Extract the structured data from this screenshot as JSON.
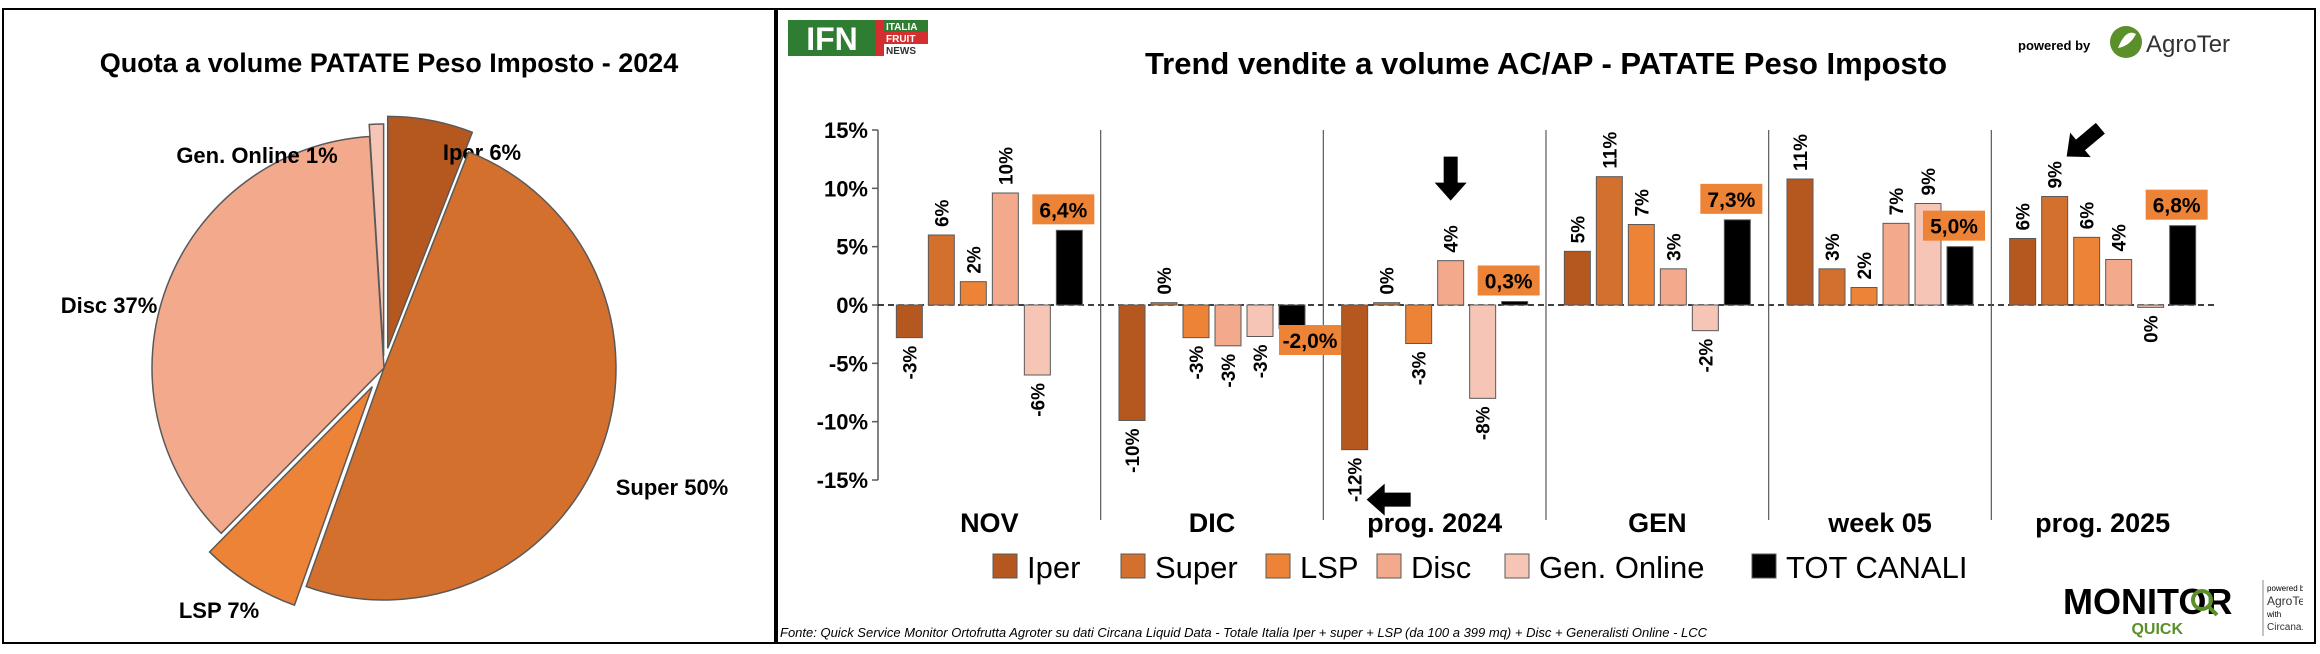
{
  "pie": {
    "chart_data": {
      "type": "pie",
      "title": "Quota a volume PATATE Peso Imposto - 2024",
      "slices": [
        {
          "name": "Iper",
          "value": 6,
          "label": "Iper 6%",
          "color": "#b5581f"
        },
        {
          "name": "Super",
          "value": 50,
          "label": "Super 50%",
          "color": "#d4702d"
        },
        {
          "name": "LSP",
          "value": 7,
          "label": "LSP 7%",
          "color": "#ed8336"
        },
        {
          "name": "Disc",
          "value": 37,
          "label": "Disc 37%",
          "color": "#f2a98c"
        },
        {
          "name": "Gen. Online",
          "value": 1,
          "label": "Gen. Online 1%",
          "color": "#f6c5b5"
        }
      ]
    }
  },
  "bar": {
    "chart_data": {
      "type": "bar",
      "title": "Trend vendite a volume AC/AP - PATATE Peso Imposto",
      "categories": [
        "NOV",
        "DIC",
        "prog. 2024",
        "GEN",
        "week 05",
        "prog. 2025"
      ],
      "ylim": [
        -15,
        15
      ],
      "yticks": [
        "-15%",
        "-10%",
        "-5%",
        "0%",
        "5%",
        "10%",
        "15%"
      ],
      "series": [
        {
          "name": "Iper",
          "color": "#b5581f",
          "values": [
            -2.8,
            -9.9,
            -12.4,
            4.6,
            10.8,
            5.7
          ],
          "labels": [
            "-3%",
            "-10%",
            "-12%",
            "5%",
            "11%",
            "6%"
          ]
        },
        {
          "name": "Super",
          "color": "#d4702d",
          "values": [
            6.0,
            0.2,
            0.2,
            11.0,
            3.1,
            9.3
          ],
          "labels": [
            "6%",
            "0%",
            "0%",
            "11%",
            "3%",
            "9%"
          ]
        },
        {
          "name": "LSP",
          "color": "#ed8336",
          "values": [
            2.0,
            -2.8,
            -3.3,
            6.9,
            1.5,
            5.8
          ],
          "labels": [
            "2%",
            "-3%",
            "-3%",
            "7%",
            "2%",
            "6%"
          ]
        },
        {
          "name": "Disc",
          "color": "#f2a98c",
          "values": [
            9.6,
            -3.5,
            3.8,
            3.1,
            7.0,
            3.9
          ],
          "labels": [
            "10%",
            "-3%",
            "4%",
            "3%",
            "7%",
            "4%"
          ]
        },
        {
          "name": "Gen. Online",
          "color": "#f6c5b5",
          "values": [
            -6.0,
            -2.7,
            -8.0,
            -2.2,
            8.7,
            -0.2
          ],
          "labels": [
            "-6%",
            "-3%",
            "-8%",
            "-2%",
            "9%",
            "0%"
          ]
        },
        {
          "name": "TOT CANALI",
          "color": "#000000",
          "values": [
            6.4,
            -2.0,
            0.3,
            7.3,
            5.0,
            6.8
          ],
          "labels": [
            "6,4%",
            "-2,0%",
            "0,3%",
            "7,3%",
            "5,0%",
            "6,8%"
          ]
        }
      ],
      "label_box_color": "#ed8336",
      "arrows": [
        {
          "category": "prog. 2024",
          "series": "Disc",
          "direction": "down"
        },
        {
          "category": "prog. 2024",
          "series": "Iper",
          "direction": "left"
        },
        {
          "category": "prog. 2025",
          "series": "Super",
          "direction": "down-left"
        }
      ],
      "legend_position": "bottom"
    }
  },
  "logos": {
    "ifn": {
      "main": "IFN",
      "line1": "ITALIA",
      "line2": "FRUIT",
      "line3": "NEWS"
    },
    "agroter": {
      "powered_by": "powered by",
      "name": "AgroTer"
    },
    "monitor": {
      "word": "MONITOR",
      "sub": "QUICK",
      "powered_by": "powered by",
      "agroter": "AgroTer",
      "with": "with",
      "circana": "Circana."
    }
  },
  "source_note": "Fonte: Quick Service Monitor Ortofrutta Agroter su dati Circana Liquid Data - Totale Italia Iper + super + LSP (da 100 a 399 mq) + Disc + Generalisti Online - LCC"
}
